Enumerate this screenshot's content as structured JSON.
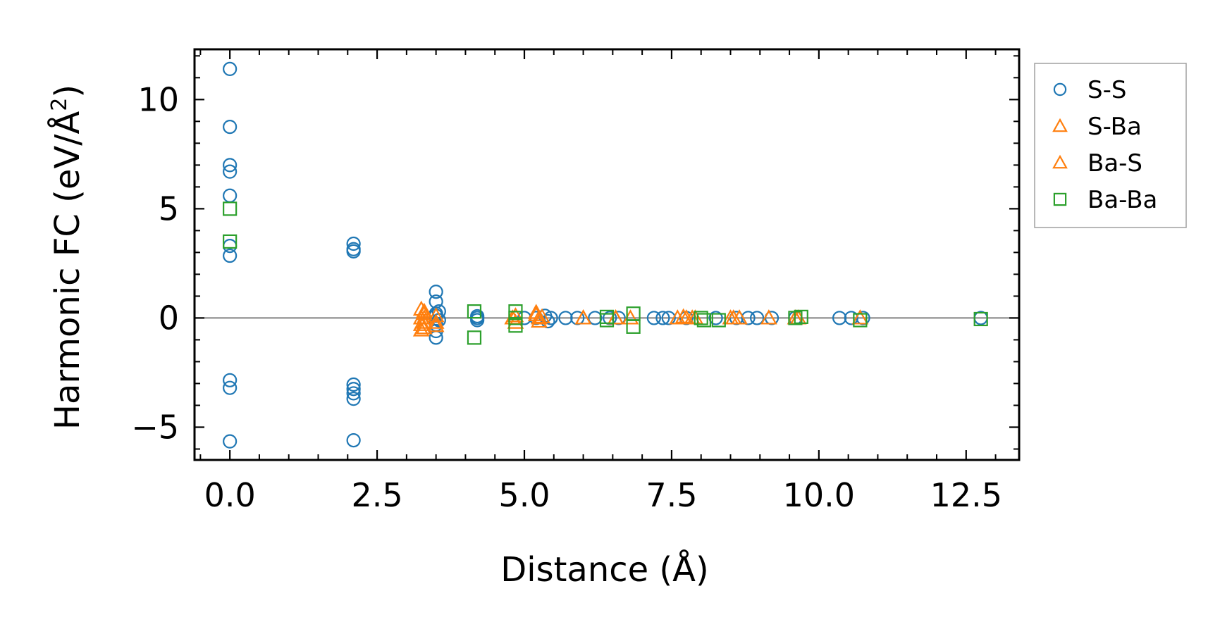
{
  "chart_data": {
    "type": "scatter",
    "xlabel": "Distance (Å)",
    "ylabel": "Harmonic FC (eV/Å",
    "ylabel_superscript": "2",
    "ylabel_close": ")",
    "xlim": [
      -0.6,
      13.4
    ],
    "ylim": [
      -6.5,
      12.3
    ],
    "xticks": [
      0.0,
      2.5,
      5.0,
      7.5,
      10.0,
      12.5
    ],
    "xtick_labels": [
      "0.0",
      "2.5",
      "5.0",
      "7.5",
      "10.0",
      "12.5"
    ],
    "yticks": [
      -5,
      0,
      5,
      10
    ],
    "ytick_labels": [
      "−5",
      "0",
      "5",
      "10"
    ],
    "zero_line": 0,
    "legend_position": "outside-right",
    "series": [
      {
        "name": "S-S",
        "marker": "circle",
        "color": "#1f77b4",
        "points": [
          [
            0.0,
            11.4
          ],
          [
            0.0,
            8.75
          ],
          [
            0.0,
            7.0
          ],
          [
            0.0,
            6.7
          ],
          [
            0.0,
            5.6
          ],
          [
            0.0,
            3.3
          ],
          [
            0.0,
            2.85
          ],
          [
            0.0,
            -2.85
          ],
          [
            0.0,
            -3.2
          ],
          [
            0.0,
            -5.65
          ],
          [
            2.1,
            3.4
          ],
          [
            2.1,
            3.15
          ],
          [
            2.1,
            3.05
          ],
          [
            2.1,
            -3.05
          ],
          [
            2.1,
            -3.25
          ],
          [
            2.1,
            -3.45
          ],
          [
            2.1,
            -3.7
          ],
          [
            2.1,
            -5.6
          ],
          [
            3.5,
            1.2
          ],
          [
            3.5,
            0.75
          ],
          [
            3.5,
            0.2
          ],
          [
            3.5,
            0.1
          ],
          [
            3.5,
            -0.3
          ],
          [
            3.5,
            -0.6
          ],
          [
            3.5,
            -0.9
          ],
          [
            3.55,
            0.3
          ],
          [
            3.55,
            -0.1
          ],
          [
            4.2,
            0.0
          ],
          [
            4.2,
            -0.1
          ],
          [
            4.2,
            0.08
          ],
          [
            5.0,
            0.0
          ],
          [
            5.2,
            0.0
          ],
          [
            5.35,
            0.1
          ],
          [
            5.4,
            -0.15
          ],
          [
            5.45,
            0.0
          ],
          [
            5.7,
            0.0
          ],
          [
            5.9,
            0.0
          ],
          [
            6.2,
            0.0
          ],
          [
            6.45,
            0.0
          ],
          [
            6.6,
            0.0
          ],
          [
            7.2,
            0.0
          ],
          [
            7.35,
            0.0
          ],
          [
            7.45,
            0.0
          ],
          [
            7.75,
            0.0
          ],
          [
            8.25,
            0.0
          ],
          [
            8.6,
            0.0
          ],
          [
            8.8,
            0.0
          ],
          [
            8.95,
            0.0
          ],
          [
            9.2,
            0.0
          ],
          [
            9.6,
            0.0
          ],
          [
            10.35,
            0.0
          ],
          [
            10.55,
            0.0
          ],
          [
            10.75,
            0.0
          ],
          [
            12.75,
            0.0
          ]
        ]
      },
      {
        "name": "S-Ba",
        "marker": "triangle",
        "color": "#ff7f0e",
        "points": [
          [
            3.25,
            0.4
          ],
          [
            3.25,
            0.0
          ],
          [
            3.25,
            -0.3
          ],
          [
            3.25,
            -0.55
          ],
          [
            3.3,
            0.2
          ],
          [
            3.3,
            -0.2
          ],
          [
            3.5,
            0.1
          ],
          [
            3.5,
            -0.2
          ],
          [
            4.8,
            0.0
          ],
          [
            4.85,
            -0.2
          ],
          [
            5.2,
            0.25
          ],
          [
            5.25,
            0.0
          ],
          [
            5.25,
            -0.15
          ],
          [
            6.0,
            0.0
          ],
          [
            6.55,
            0.0
          ],
          [
            6.8,
            0.0
          ],
          [
            7.7,
            0.05
          ],
          [
            7.75,
            0.0
          ],
          [
            7.9,
            0.0
          ],
          [
            8.55,
            0.0
          ],
          [
            8.65,
            0.0
          ],
          [
            9.15,
            0.0
          ],
          [
            9.6,
            0.0
          ],
          [
            10.7,
            0.0
          ]
        ]
      },
      {
        "name": "Ba-S",
        "marker": "triangle",
        "color": "#ff7f0e",
        "points": [
          [
            3.3,
            0.3
          ],
          [
            3.3,
            0.0
          ],
          [
            3.3,
            -0.45
          ],
          [
            3.5,
            -0.35
          ],
          [
            4.85,
            0.1
          ],
          [
            5.2,
            0.15
          ],
          [
            5.3,
            0.05
          ],
          [
            6.0,
            0.0
          ],
          [
            6.55,
            0.0
          ],
          [
            7.6,
            0.0
          ],
          [
            7.85,
            0.0
          ],
          [
            8.5,
            0.0
          ],
          [
            9.65,
            0.0
          ]
        ]
      },
      {
        "name": "Ba-Ba",
        "marker": "square",
        "color": "#2ca02c",
        "points": [
          [
            0.0,
            5.0
          ],
          [
            0.0,
            3.5
          ],
          [
            4.15,
            0.3
          ],
          [
            4.15,
            -0.9
          ],
          [
            4.85,
            0.3
          ],
          [
            4.85,
            0.0
          ],
          [
            4.85,
            -0.35
          ],
          [
            6.4,
            0.05
          ],
          [
            6.4,
            -0.1
          ],
          [
            6.85,
            0.2
          ],
          [
            6.85,
            -0.4
          ],
          [
            8.0,
            0.0
          ],
          [
            8.05,
            -0.1
          ],
          [
            8.3,
            -0.1
          ],
          [
            9.6,
            0.0
          ],
          [
            9.7,
            0.05
          ],
          [
            10.7,
            -0.1
          ],
          [
            12.75,
            -0.05
          ]
        ]
      }
    ]
  }
}
